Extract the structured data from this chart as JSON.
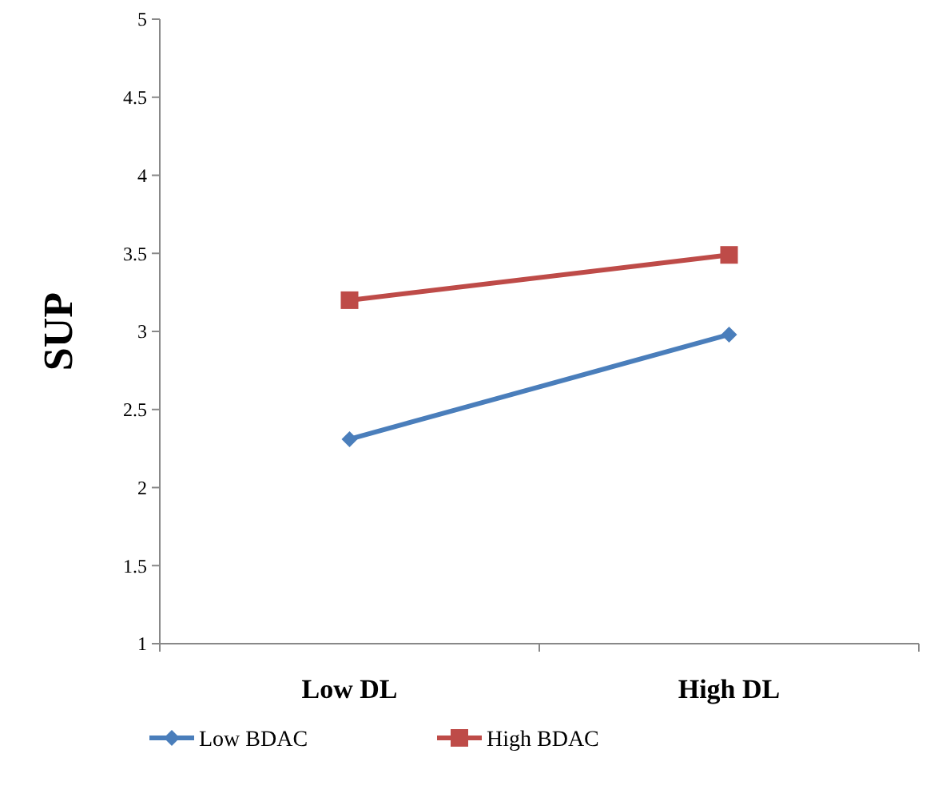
{
  "chart_data": {
    "type": "line",
    "ylabel": "SUP",
    "categories": [
      "Low DL",
      "High DL"
    ],
    "series": [
      {
        "name": "Low BDAC",
        "color": "#4a7ebb",
        "values": [
          2.31,
          2.98
        ],
        "marker": "diamond"
      },
      {
        "name": "High BDAC",
        "color": "#be4b48",
        "values": [
          3.2,
          3.49
        ],
        "marker": "square"
      }
    ],
    "ylim": [
      1,
      5
    ],
    "yticks": [
      1,
      1.5,
      2,
      2.5,
      3,
      3.5,
      4,
      4.5,
      5
    ],
    "grid": false,
    "legend": "bottom"
  }
}
